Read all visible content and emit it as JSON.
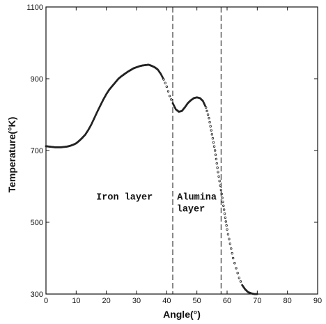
{
  "chart_data": {
    "type": "scatter",
    "title": "",
    "xlabel": "Angle(°)",
    "ylabel": "Temperature(°K)",
    "xlim": [
      0,
      90
    ],
    "ylim": [
      300,
      1100
    ],
    "xticks": [
      0,
      10,
      20,
      30,
      40,
      50,
      60,
      70,
      80,
      90
    ],
    "yticks": [
      300,
      500,
      700,
      900,
      1100
    ],
    "grid": false,
    "series": [
      {
        "x": [
          0,
          1,
          2,
          3,
          4,
          5,
          6,
          7,
          8,
          9,
          10,
          11,
          12,
          13,
          14,
          15,
          16,
          17,
          18,
          19,
          20,
          21,
          22,
          23,
          24,
          25,
          26,
          27,
          28,
          29,
          30,
          31,
          32,
          33,
          34,
          35,
          36,
          37,
          38,
          39,
          40,
          41,
          42,
          43,
          44,
          45,
          46,
          47,
          48,
          49,
          50,
          51,
          52,
          53,
          54,
          55,
          56,
          57,
          58,
          59,
          60,
          61,
          62,
          63,
          64,
          65,
          66,
          67,
          68,
          69,
          70
        ],
        "y": [
          712,
          711,
          710,
          709,
          709,
          709,
          710,
          711,
          713,
          716,
          720,
          727,
          735,
          744,
          757,
          772,
          790,
          808,
          825,
          842,
          857,
          870,
          880,
          890,
          900,
          907,
          913,
          919,
          924,
          929,
          932,
          935,
          937,
          938,
          939,
          936,
          932,
          926,
          914,
          898,
          878,
          852,
          832,
          815,
          808,
          810,
          820,
          832,
          840,
          846,
          848,
          846,
          838,
          820,
          790,
          745,
          700,
          640,
          590,
          535,
          480,
          440,
          400,
          372,
          345,
          325,
          313,
          305,
          302,
          300,
          300
        ],
        "color": "#222222"
      }
    ],
    "vlines": [
      42,
      58
    ],
    "annotations": [
      {
        "text": "Iron layer",
        "x": 26,
        "y": 563
      },
      {
        "text": "Alumina",
        "x": 50,
        "y": 563
      },
      {
        "text": "layer",
        "x": 48,
        "y": 530
      }
    ]
  }
}
